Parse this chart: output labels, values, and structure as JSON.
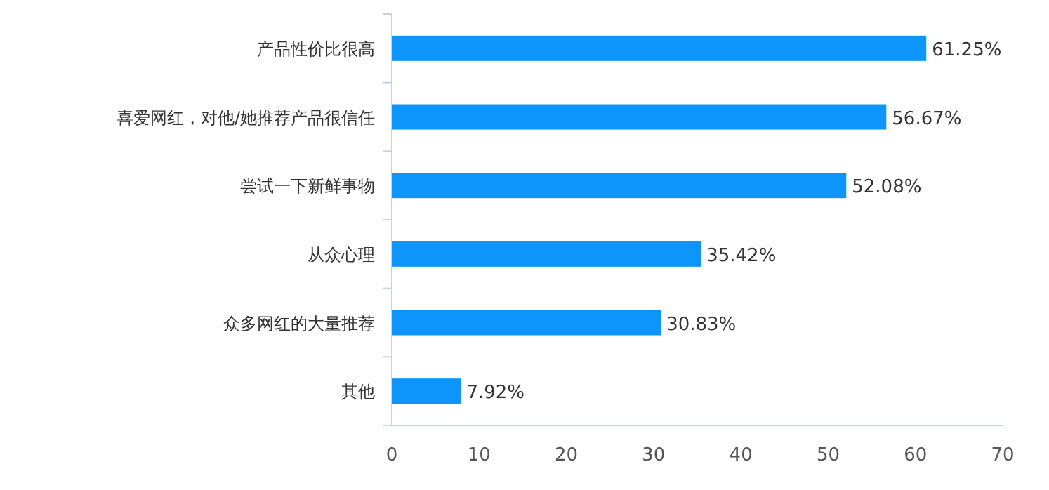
{
  "chart_data": {
    "type": "bar",
    "orientation": "horizontal",
    "categories": [
      "产品性价比很高",
      "喜爱网红，对他/她推荐产品很信任",
      "尝试一下新鲜事物",
      "从众心理",
      "众多网红的大量推荐",
      "其他"
    ],
    "values": [
      61.25,
      56.67,
      52.08,
      35.42,
      30.83,
      7.92
    ],
    "value_labels": [
      "61.25%",
      "56.67%",
      "52.08%",
      "35.42%",
      "30.83%",
      "7.92%"
    ],
    "color": "#0e95fb",
    "xlim": [
      0,
      70
    ],
    "xticks": [
      0,
      10,
      20,
      30,
      40,
      50,
      60,
      70
    ],
    "grid": false
  }
}
